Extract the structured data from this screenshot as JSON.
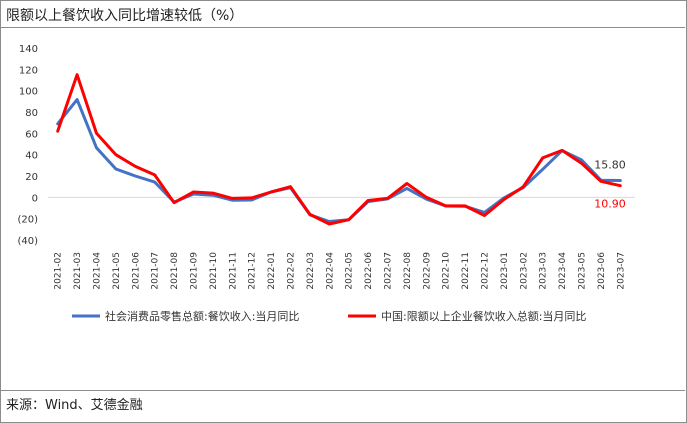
{
  "title": "限额以上餐饮收入同比增速较低（%）",
  "source": "来源：Wind、艾德金融",
  "colors": {
    "series1": "#4472C4",
    "series2": "#FF0000",
    "axis": "#d9d9d9"
  },
  "chart_data": {
    "type": "line",
    "title": "限额以上餐饮收入同比增速较低（%）",
    "xlabel": "",
    "ylabel": "",
    "ylim": [
      -40,
      140
    ],
    "yticks": [
      "140",
      "120",
      "100",
      "80",
      "60",
      "40",
      "20",
      "0",
      "(20)",
      "(40)"
    ],
    "grid": false,
    "legend_position": "bottom",
    "x": [
      "2021-02",
      "2021-03",
      "2021-04",
      "2021-05",
      "2021-06",
      "2021-07",
      "2021-08",
      "2021-09",
      "2021-10",
      "2021-11",
      "2021-12",
      "2022-01",
      "2022-02",
      "2022-03",
      "2022-04",
      "2022-05",
      "2022-06",
      "2022-07",
      "2022-08",
      "2022-09",
      "2022-10",
      "2022-11",
      "2022-12",
      "2023-01",
      "2023-02",
      "2023-03",
      "2023-04",
      "2023-05",
      "2023-06",
      "2023-07"
    ],
    "series": [
      {
        "name": "社会消费品零售总额:餐饮收入:当月同比",
        "color": "#4472C4",
        "values": [
          68.9,
          91.6,
          46.4,
          26.6,
          20.0,
          14.3,
          -4.5,
          3.1,
          2.0,
          -2.7,
          -2.5,
          5.0,
          9.0,
          -16.4,
          -22.7,
          -21.1,
          -4.0,
          -1.5,
          8.4,
          -1.7,
          -8.1,
          -8.4,
          -14.1,
          -0.5,
          9.2,
          26.3,
          43.8,
          35.1,
          16.1,
          15.8
        ]
      },
      {
        "name": "中国:限额以上企业餐饮收入总额:当月同比",
        "color": "#FF0000",
        "values": [
          62.0,
          115.0,
          60.0,
          40.0,
          29.0,
          21.0,
          -5.0,
          5.0,
          4.0,
          -1.0,
          -0.5,
          5.0,
          10.0,
          -16.0,
          -25.0,
          -21.0,
          -3.0,
          -1.0,
          13.0,
          0.0,
          -8.0,
          -8.0,
          -17.0,
          -2.0,
          10.0,
          37.0,
          44.0,
          32.0,
          15.0,
          10.9
        ]
      }
    ],
    "annotations": [
      {
        "label": "15.80",
        "series": 0,
        "index": 29
      },
      {
        "label": "10.90",
        "series": 1,
        "index": 29
      }
    ]
  }
}
